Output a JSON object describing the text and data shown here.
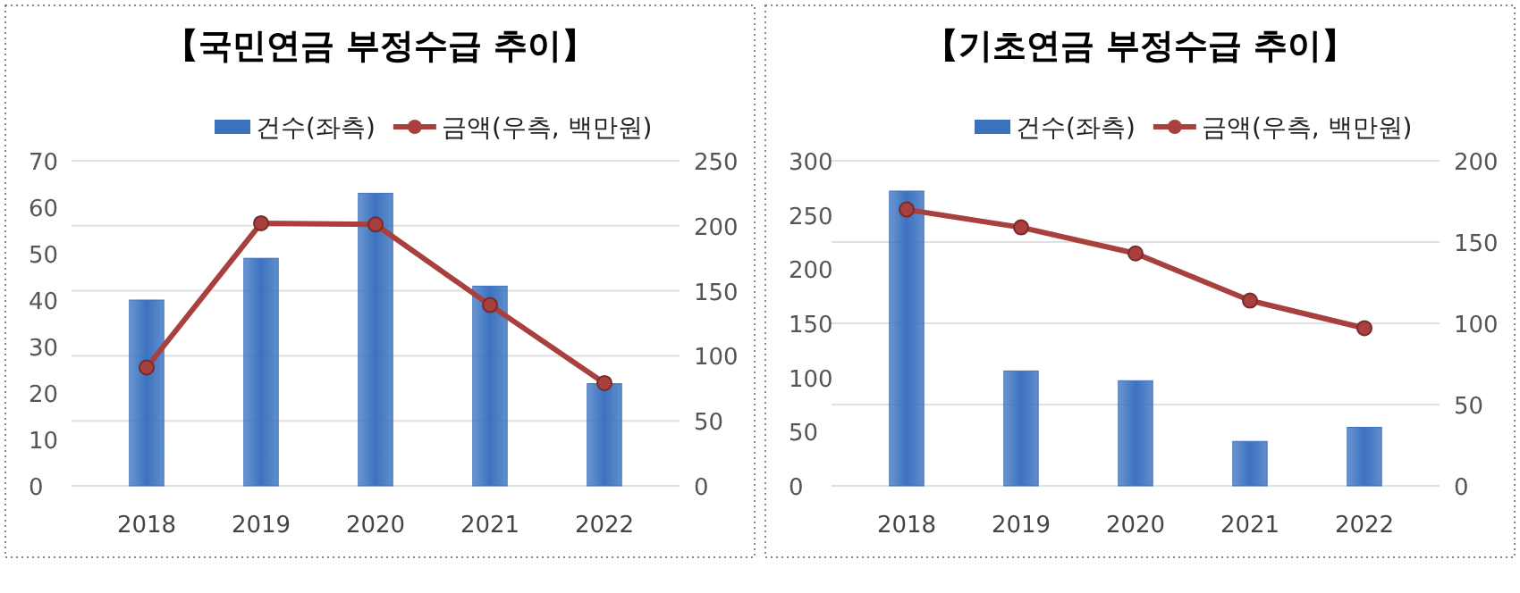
{
  "chart_data": [
    {
      "type": "bar",
      "title": "【국민연금 부정수급 추이】",
      "categories": [
        "2018",
        "2019",
        "2020",
        "2021",
        "2022"
      ],
      "series": [
        {
          "name": "건수(좌측)",
          "color": "#3b72c0",
          "values": [
            40,
            49,
            63,
            43,
            22
          ]
        },
        {
          "name": "금액(우측, 백만원)",
          "type": "line",
          "axis": "y2",
          "color": "#a8403e",
          "values": [
            91,
            202,
            201,
            139,
            79
          ]
        }
      ],
      "ylim": [
        0,
        70
      ],
      "yticks": [
        0,
        10,
        20,
        30,
        40,
        50,
        60,
        70
      ],
      "y2lim": [
        0,
        250
      ],
      "y2ticks": [
        0,
        50,
        100,
        150,
        200,
        250
      ],
      "grid": true,
      "legend": "top right",
      "marker": "circle",
      "line_style": "solid"
    },
    {
      "type": "bar",
      "title": "【기초연금 부정수급 추이】",
      "categories": [
        "2018",
        "2019",
        "2020",
        "2021",
        "2022"
      ],
      "series": [
        {
          "name": "건수(좌측)",
          "color": "#3b72c0",
          "values": [
            272,
            106,
            97,
            41,
            54
          ]
        },
        {
          "name": "금액(우측, 백만원)",
          "type": "line",
          "axis": "y2",
          "color": "#a8403e",
          "values": [
            170,
            159,
            143,
            114,
            97
          ]
        }
      ],
      "ylim": [
        0,
        300
      ],
      "yticks": [
        0,
        50,
        100,
        150,
        200,
        250,
        300
      ],
      "y2lim": [
        0,
        200
      ],
      "y2ticks": [
        0,
        50,
        100,
        150,
        200
      ],
      "grid": true,
      "legend": "top right",
      "marker": "circle",
      "line_style": "solid"
    }
  ]
}
